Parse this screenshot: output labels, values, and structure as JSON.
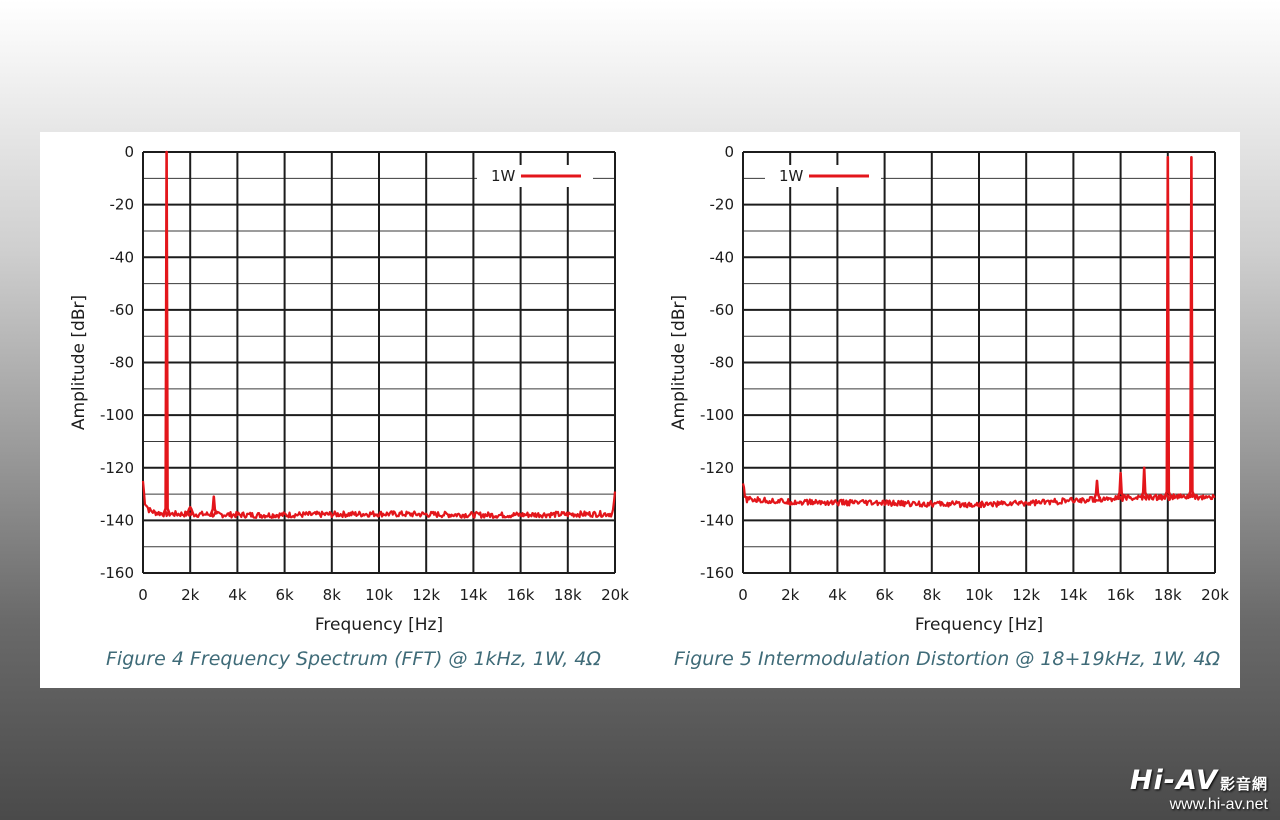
{
  "chart_data": [
    {
      "type": "line",
      "caption": "Figure 4 Frequency Spectrum (FFT) @ 1kHz, 1W, 4Ω",
      "xlabel": "Frequency [Hz]",
      "ylabel": "Amplitude [dBr]",
      "xlim": [
        0,
        20000
      ],
      "ylim": [
        -160,
        0
      ],
      "x_ticks": [
        0,
        2000,
        4000,
        6000,
        8000,
        10000,
        12000,
        14000,
        16000,
        18000,
        20000
      ],
      "x_tick_labels": [
        "0",
        "2k",
        "4k",
        "6k",
        "8k",
        "10k",
        "12k",
        "14k",
        "16k",
        "18k",
        "20k"
      ],
      "y_ticks": [
        0,
        -20,
        -40,
        -60,
        -80,
        -100,
        -120,
        -140,
        -160
      ],
      "y_tick_labels": [
        "0",
        "-20",
        "-40",
        "-60",
        "-80",
        "-100",
        "-120",
        "-140",
        "-160"
      ],
      "grid": true,
      "legend_position": "top-right",
      "series": [
        {
          "name": "1W",
          "color": "#e3161b",
          "noise_floor": [
            [
              0,
              -125
            ],
            [
              80,
              -133
            ],
            [
              250,
              -136
            ],
            [
              500,
              -137
            ],
            [
              900,
              -137.5
            ],
            [
              5000,
              -138
            ],
            [
              10000,
              -137.5
            ],
            [
              15000,
              -138
            ],
            [
              19900,
              -137.5
            ],
            [
              20000,
              -130
            ]
          ],
          "peaks": [
            [
              1000,
              0
            ],
            [
              2000,
              -135
            ],
            [
              3000,
              -131
            ]
          ]
        }
      ]
    },
    {
      "type": "line",
      "caption": "Figure 5 Intermodulation Distortion @ 18+19kHz, 1W, 4Ω",
      "xlabel": "Frequency [Hz]",
      "ylabel": "Amplitude [dBr]",
      "xlim": [
        0,
        20000
      ],
      "ylim": [
        -160,
        0
      ],
      "x_ticks": [
        0,
        2000,
        4000,
        6000,
        8000,
        10000,
        12000,
        14000,
        16000,
        18000,
        20000
      ],
      "x_tick_labels": [
        "0",
        "2k",
        "4k",
        "6k",
        "8k",
        "10k",
        "12k",
        "14k",
        "16k",
        "18k",
        "20k"
      ],
      "y_ticks": [
        0,
        -20,
        -40,
        -60,
        -80,
        -100,
        -120,
        -140,
        -160
      ],
      "y_tick_labels": [
        "0",
        "-20",
        "-40",
        "-60",
        "-80",
        "-100",
        "-120",
        "-140",
        "-160"
      ],
      "grid": true,
      "legend_position": "top-left",
      "series": [
        {
          "name": "1W",
          "color": "#e3161b",
          "noise_floor": [
            [
              0,
              -126
            ],
            [
              100,
              -132
            ],
            [
              2000,
              -133
            ],
            [
              6000,
              -133.5
            ],
            [
              10000,
              -134
            ],
            [
              13000,
              -133
            ],
            [
              16000,
              -131.5
            ],
            [
              19000,
              -131
            ],
            [
              20000,
              -131.5
            ]
          ],
          "peaks": [
            [
              15000,
              -125
            ],
            [
              16000,
              -122
            ],
            [
              17000,
              -120
            ],
            [
              18000,
              -2
            ],
            [
              19000,
              -2
            ]
          ]
        }
      ]
    }
  ],
  "watermark": {
    "logo": "Hi-AV",
    "chinese": "影音網",
    "url": "www.hi-av.net",
    "color": "#ffffff"
  }
}
